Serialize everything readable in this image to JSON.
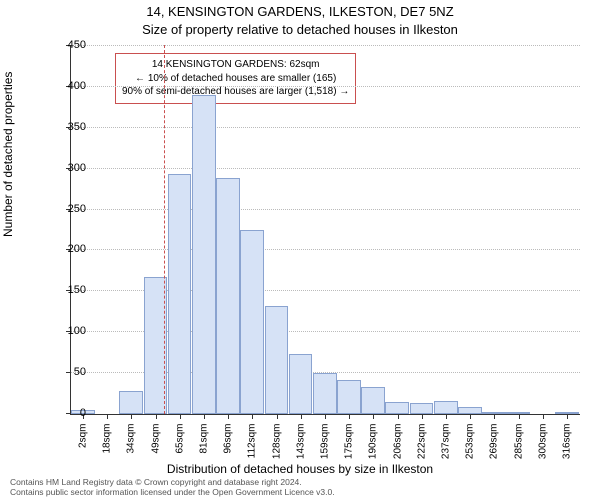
{
  "title_line1": "14, KENSINGTON GARDENS, ILKESTON, DE7 5NZ",
  "title_line2": "Size of property relative to detached houses in Ilkeston",
  "ylabel": "Number of detached properties",
  "xlabel": "Distribution of detached houses by size in Ilkeston",
  "chart": {
    "type": "histogram",
    "ylim": [
      0,
      450
    ],
    "ytick_step": 50,
    "bar_fill": "#d6e2f6",
    "bar_border": "#8aa3d0",
    "background": "#ffffff",
    "grid_color": "#bbbbbb",
    "axis_color": "#333333",
    "marker_color": "#c94f4f",
    "marker_x_index": 4,
    "bars": [
      {
        "label": "2sqm",
        "value": 5
      },
      {
        "label": "18sqm",
        "value": 0
      },
      {
        "label": "34sqm",
        "value": 28
      },
      {
        "label": "49sqm",
        "value": 167
      },
      {
        "label": "65sqm",
        "value": 293
      },
      {
        "label": "81sqm",
        "value": 390
      },
      {
        "label": "96sqm",
        "value": 289
      },
      {
        "label": "112sqm",
        "value": 225
      },
      {
        "label": "128sqm",
        "value": 132
      },
      {
        "label": "143sqm",
        "value": 73
      },
      {
        "label": "159sqm",
        "value": 50
      },
      {
        "label": "175sqm",
        "value": 42
      },
      {
        "label": "190sqm",
        "value": 33
      },
      {
        "label": "206sqm",
        "value": 15
      },
      {
        "label": "222sqm",
        "value": 13
      },
      {
        "label": "237sqm",
        "value": 16
      },
      {
        "label": "253sqm",
        "value": 8
      },
      {
        "label": "269sqm",
        "value": 2
      },
      {
        "label": "285sqm",
        "value": 3
      },
      {
        "label": "300sqm",
        "value": 0
      },
      {
        "label": "316sqm",
        "value": 2
      }
    ]
  },
  "legend": {
    "line1": "14 KENSINGTON GARDENS: 62sqm",
    "line2": "← 10% of detached houses are smaller (165)",
    "line3": "90% of semi-detached houses are larger (1,518) →"
  },
  "footer": {
    "line1": "Contains HM Land Registry data © Crown copyright and database right 2024.",
    "line2": "Contains public sector information licensed under the Open Government Licence v3.0."
  }
}
